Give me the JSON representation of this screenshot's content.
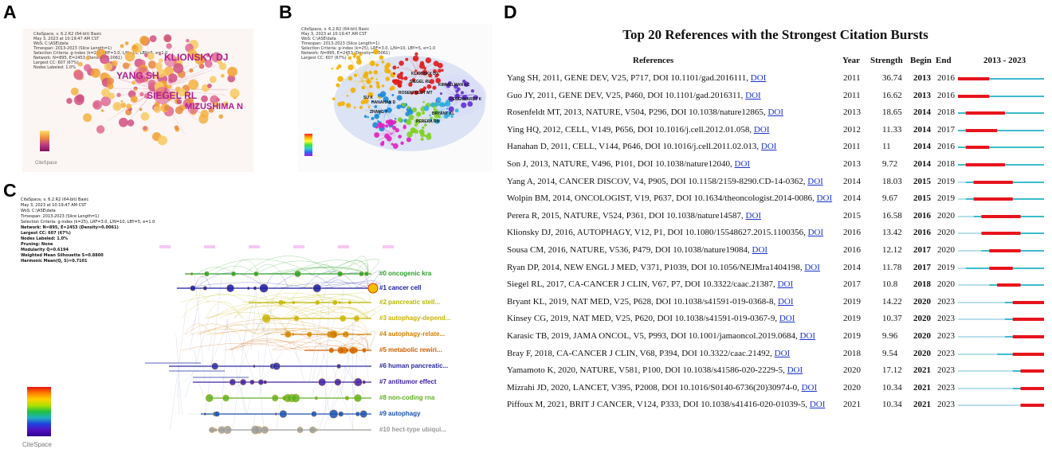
{
  "panels": {
    "a": {
      "label": "A",
      "nodes": [
        "KLIONSKY DJ",
        "YANG SH",
        "SIEGEL RL",
        "MIZUSHIMA N"
      ],
      "logo": "CiteSpace"
    },
    "b": {
      "label": "B",
      "nodes": [
        "KLIONSKY DJ",
        "SIEGEL RL",
        "HANAHAN D",
        "ZHANG Y",
        "ROSENFELDT MT",
        "SU X",
        "KIMMELMAN AC",
        "DEGENHARDT K",
        "BRYANT KL",
        "PERERA RM"
      ]
    },
    "c": {
      "label": "C",
      "info_lines": [
        "CiteSpace, v. 6.2.R2 (64-bit) Basic",
        "May 3, 2023 at 10:19:47 AM CST",
        "WoS: C:\\ASE\\data",
        "Timespan: 2013-2023 (Slice Length=1)",
        "Selection Criteria: g-index (k=25), LRF=3.0, L/N=10, LBY=5, e=1.0",
        "Network: N=895, E=2453 (Density=0.0061)",
        "Largest CC: 607 (67%)",
        "Nodes Labeled: 1.0%",
        "Pruning: None",
        "Modularity Q=0.6194",
        "Weighted Mean Silhouette S=0.8800",
        "Harmonic Mean(Q, S)=0.7101"
      ],
      "clusters": [
        "#0 oncogenic kra",
        "#1 cancer cell",
        "#2 pancreatic stell...",
        "#3 autophagy-depend...",
        "#4 autophagy-relate...",
        "#5 metabolic rewiri...",
        "#6 human pancreatic...",
        "#7 antitumor effect",
        "#8 non-coding rna",
        "#9 autophagy",
        "#10 hect-type ubiqui..."
      ],
      "cluster_colors": [
        "#2ca02c",
        "#1a1aa0",
        "#b8b800",
        "#c8b400",
        "#d08000",
        "#d06000",
        "#2a2aa0",
        "#4020a0",
        "#60b020",
        "#1a50b0",
        "#9a9a9a"
      ],
      "logo": "CiteSpace"
    },
    "d": {
      "label": "D",
      "title": "Top 20 References with the Strongest Citation Bursts",
      "headers": {
        "references": "References",
        "year": "Year",
        "strength": "Strength",
        "begin": "Begin",
        "end": "End",
        "range": "2013 - 2023"
      },
      "range_start": 2013,
      "range_end": 2023,
      "rows": [
        {
          "ref": "Yang SH, 2011, GENE DEV, V25, P717, DOI 10.1101/gad.2016111,",
          "doi": "DOI",
          "year": "2011",
          "strength": "36.74",
          "begin": "2013",
          "end": "2016"
        },
        {
          "ref": "Guo JY, 2011, GENE DEV, V25, P460, DOI 10.1101/gad.2016311,",
          "doi": "DOI",
          "year": "2011",
          "strength": "16.62",
          "begin": "2013",
          "end": "2016"
        },
        {
          "ref": "Rosenfeldt MT, 2013, NATURE, V504, P296, DOI 10.1038/nature12865,",
          "doi": "DOI",
          "year": "2013",
          "strength": "18.65",
          "begin": "2014",
          "end": "2018"
        },
        {
          "ref": "Ying HQ, 2012, CELL, V149, P656, DOI 10.1016/j.cell.2012.01.058,",
          "doi": "DOI",
          "year": "2012",
          "strength": "11.33",
          "begin": "2014",
          "end": "2017"
        },
        {
          "ref": "Hanahan D, 2011, CELL, V144, P646, DOI 10.1016/j.cell.2011.02.013,",
          "doi": "DOI",
          "year": "2011",
          "strength": "11",
          "begin": "2014",
          "end": "2016"
        },
        {
          "ref": "Son J, 2013, NATURE, V496, P101, DOI 10.1038/nature12040,",
          "doi": "DOI",
          "year": "2013",
          "strength": "9.72",
          "begin": "2014",
          "end": "2018"
        },
        {
          "ref": "Yang A, 2014, CANCER DISCOV, V4, P905, DOI 10.1158/2159-8290.CD-14-0362,",
          "doi": "DOI",
          "year": "2014",
          "strength": "18.03",
          "begin": "2015",
          "end": "2019"
        },
        {
          "ref": "Wolpin BM, 2014, ONCOLOGIST, V19, P637, DOI 10.1634/theoncologist.2014-0086,",
          "doi": "DOI",
          "year": "2014",
          "strength": "9.67",
          "begin": "2015",
          "end": "2019"
        },
        {
          "ref": "Perera R, 2015, NATURE, V524, P361, DOI 10.1038/nature14587,",
          "doi": "DOI",
          "year": "2015",
          "strength": "16.58",
          "begin": "2016",
          "end": "2020"
        },
        {
          "ref": "Klionsky DJ, 2016, AUTOPHAGY, V12, P1, DOI 10.1080/15548627.2015.1100356,",
          "doi": "DOI",
          "year": "2016",
          "strength": "13.42",
          "begin": "2016",
          "end": "2020"
        },
        {
          "ref": "Sousa CM, 2016, NATURE, V536, P479, DOI 10.1038/nature19084,",
          "doi": "DOI",
          "year": "2016",
          "strength": "12.12",
          "begin": "2017",
          "end": "2020"
        },
        {
          "ref": "Ryan DP, 2014, NEW ENGL J MED, V371, P1039, DOI 10.1056/NEJMra1404198,",
          "doi": "DOI",
          "year": "2014",
          "strength": "11.78",
          "begin": "2017",
          "end": "2019"
        },
        {
          "ref": "Siegel RL, 2017, CA-CANCER J CLIN, V67, P7, DOI 10.3322/caac.21387,",
          "doi": "DOI",
          "year": "2017",
          "strength": "10.8",
          "begin": "2018",
          "end": "2020"
        },
        {
          "ref": "Bryant KL, 2019, NAT MED, V25, P628, DOI 10.1038/s41591-019-0368-8,",
          "doi": "DOI",
          "year": "2019",
          "strength": "14.22",
          "begin": "2020",
          "end": "2023"
        },
        {
          "ref": "Kinsey CG, 2019, NAT MED, V25, P620, DOI 10.1038/s41591-019-0367-9,",
          "doi": "DOI",
          "year": "2019",
          "strength": "10.37",
          "begin": "2020",
          "end": "2023"
        },
        {
          "ref": "Karasic TB, 2019, JAMA ONCOL, V5, P993, DOI 10.1001/jamaoncol.2019.0684,",
          "doi": "DOI",
          "year": "2019",
          "strength": "9.96",
          "begin": "2020",
          "end": "2023"
        },
        {
          "ref": "Bray F, 2018, CA-CANCER J CLIN, V68, P394, DOI 10.3322/caac.21492,",
          "doi": "DOI",
          "year": "2018",
          "strength": "9.54",
          "begin": "2020",
          "end": "2023"
        },
        {
          "ref": "Yamamoto K, 2020, NATURE, V581, P100, DOI 10.1038/s41586-020-2229-5,",
          "doi": "DOI",
          "year": "2020",
          "strength": "17.12",
          "begin": "2021",
          "end": "2023"
        },
        {
          "ref": "Mizrahi JD, 2020, LANCET, V395, P2008, DOI 10.1016/S0140-6736(20)30974-0,",
          "doi": "DOI",
          "year": "2020",
          "strength": "10.34",
          "begin": "2021",
          "end": "2023"
        },
        {
          "ref": "Piffoux M, 2021, BRIT J CANCER, V124, P333, DOI 10.1038/s41416-020-01039-5,",
          "doi": "DOI",
          "year": "2021",
          "strength": "10.34",
          "begin": "2021",
          "end": "2023"
        }
      ],
      "colors": {
        "burst": "#e8141c",
        "cited": "#3cbccc",
        "before": "#b7dfea"
      }
    }
  }
}
